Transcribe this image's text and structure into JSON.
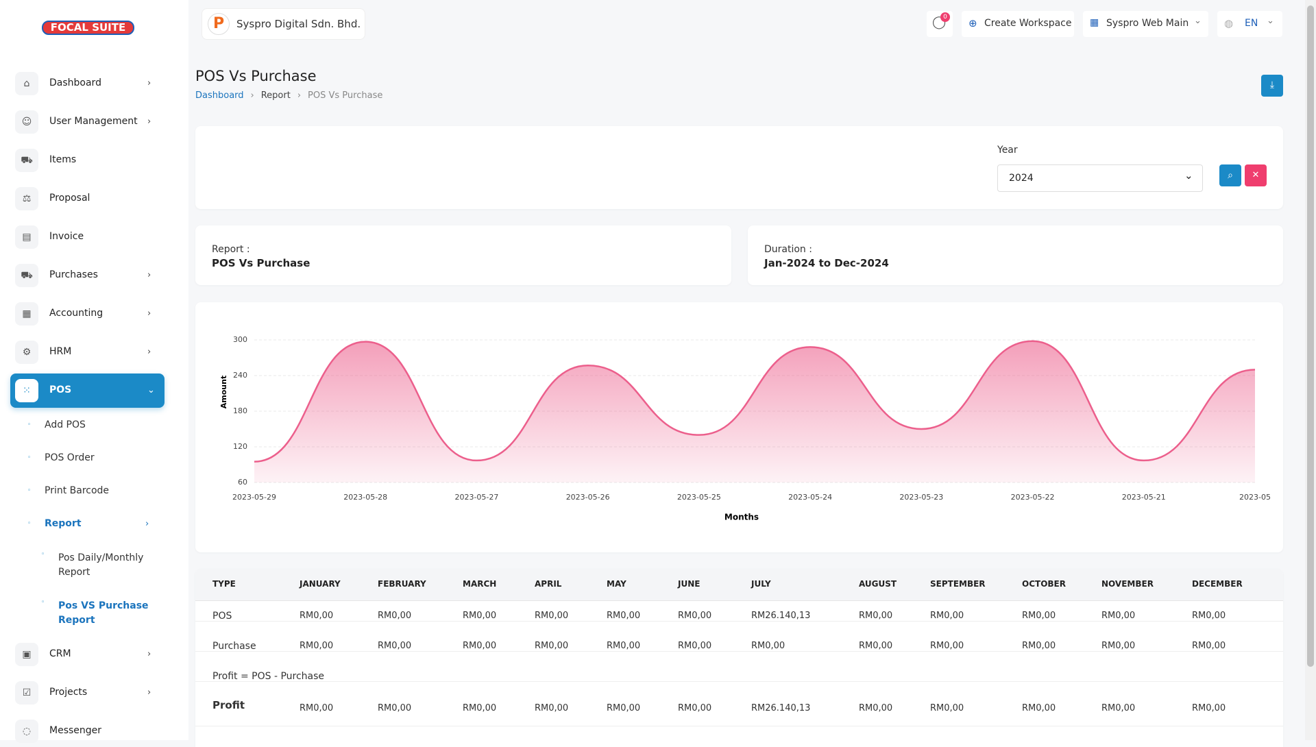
{
  "header": {
    "logo": [
      "FOCAL",
      "SUITE"
    ],
    "company": "Syspro Digital Sdn. Bhd.",
    "notifications": "0",
    "create_workspace": "Create Workspace",
    "workspace": "Syspro Web Main",
    "language": "EN"
  },
  "sidebar": {
    "items": [
      "Dashboard",
      "User Management",
      "Items",
      "Proposal",
      "Invoice",
      "Purchases",
      "Accounting",
      "HRM",
      "POS"
    ],
    "pos_sub": [
      "Add POS",
      "POS Order",
      "Print Barcode",
      "Report"
    ],
    "report_sub": [
      "Pos Daily/Monthly Report",
      "Pos VS Purchase Report"
    ],
    "items_after": [
      "CRM",
      "Projects",
      "Messenger"
    ]
  },
  "page": {
    "title": "POS Vs Purchase",
    "breadcrumb": [
      "Dashboard",
      "Report",
      "POS Vs Purchase"
    ]
  },
  "filter": {
    "label": "Year",
    "value": "2024"
  },
  "info": [
    {
      "label": "Report :",
      "value": "POS Vs Purchase"
    },
    {
      "label": "Duration :",
      "value": "Jan-2024 to Dec-2024"
    }
  ],
  "chart_data": {
    "type": "area",
    "x_label": "Months",
    "y_label": "Amount",
    "color": "#ec5f8c",
    "categories": [
      "2023-05-29",
      "2023-05-28",
      "2023-05-27",
      "2023-05-26",
      "2023-05-25",
      "2023-05-24",
      "2023-05-23",
      "2023-05-22",
      "2023-05-21",
      "2023-05"
    ],
    "values": [
      95,
      297,
      97,
      257,
      140,
      288,
      150,
      298,
      97,
      250
    ],
    "ylim": [
      60,
      300
    ],
    "yticks": [
      60,
      120,
      180,
      240,
      300
    ],
    "grid": true
  },
  "table": {
    "header": [
      "TYPE",
      "JANUARY",
      "FEBRUARY",
      "MARCH",
      "APRIL",
      "MAY",
      "JUNE",
      "JULY",
      "AUGUST",
      "SEPTEMBER",
      "OCTOBER",
      "NOVEMBER",
      "DECEMBER"
    ],
    "rows": [
      [
        "POS",
        "RM0,00",
        "RM0,00",
        "RM0,00",
        "RM0,00",
        "RM0,00",
        "RM0,00",
        "RM26.140,13",
        "RM0,00",
        "RM0,00",
        "RM0,00",
        "RM0,00",
        "RM0,00"
      ],
      [
        "Purchase",
        "RM0,00",
        "RM0,00",
        "RM0,00",
        "RM0,00",
        "RM0,00",
        "RM0,00",
        "RM0,00",
        "RM0,00",
        "RM0,00",
        "RM0,00",
        "RM0,00",
        "RM0,00"
      ]
    ],
    "note": "Profit = POS - Purchase",
    "profit": [
      "Profit",
      "RM0,00",
      "RM0,00",
      "RM0,00",
      "RM0,00",
      "RM0,00",
      "RM0,00",
      "RM26.140,13",
      "RM0,00",
      "RM0,00",
      "RM0,00",
      "RM0,00",
      "RM0,00"
    ]
  }
}
